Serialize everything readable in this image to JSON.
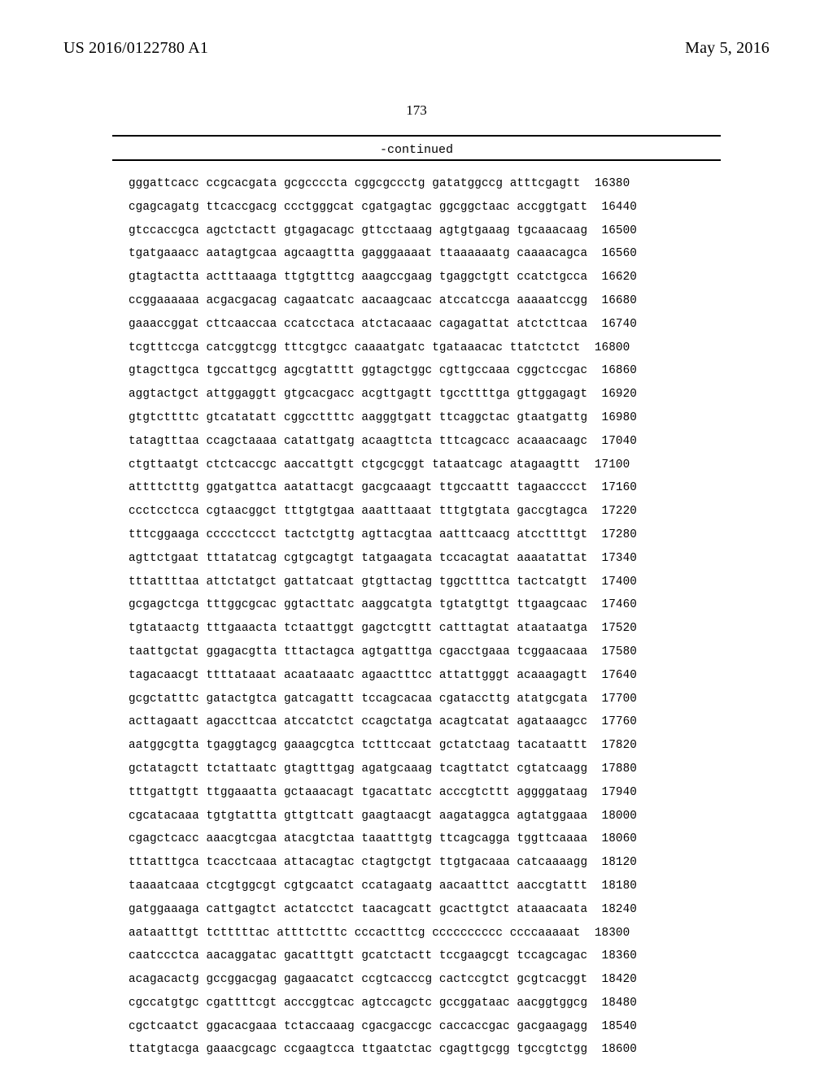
{
  "header": {
    "left": "US 2016/0122780 A1",
    "right": "May 5, 2016"
  },
  "page_number": "173",
  "continued_label": "-continued",
  "sequence_lines": [
    "gggattcacc ccgcacgata gcgccccta cggcgccctg gatatggccg atttcgagtt  16380",
    "cgagcagatg ttcaccgacg ccctgggcat cgatgagtac ggcggctaac accggtgatt  16440",
    "gtccaccgca agctctactt gtgagacagc gttcctaaag agtgtgaaag tgcaaacaag  16500",
    "tgatgaaacc aatagtgcaa agcaagttta gagggaaaat ttaaaaaatg caaaacagca  16560",
    "gtagtactta actttaaaga ttgtgtttcg aaagccgaag tgaggctgtt ccatctgcca  16620",
    "ccggaaaaaa acgacgacag cagaatcatc aacaagcaac atccatccga aaaaatccgg  16680",
    "gaaaccggat cttcaaccaa ccatcctaca atctacaaac cagagattat atctcttcaa  16740",
    "tcgtttccga catcggtcgg tttcgtgcc caaaatgatc tgataaacac ttatctctct  16800",
    "gtagcttgca tgccattgcg agcgtatttt ggtagctggc cgttgccaaa cggctccgac  16860",
    "aggtactgct attggaggtt gtgcacgacc acgttgagtt tgccttttga gttggagagt  16920",
    "gtgtcttttc gtcatatatt cggccttttc aagggtgatt ttcaggctac gtaatgattg  16980",
    "tatagtttaa ccagctaaaa catattgatg acaagttcta tttcagcacc acaaacaagc  17040",
    "ctgttaatgt ctctcaccgc aaccattgtt ctgcgcggt tataatcagc atagaagttt  17100",
    "attttctttg ggatgattca aatattacgt gacgcaaagt ttgccaattt tagaacccct  17160",
    "ccctcctcca cgtaacggct tttgtgtgaa aaatttaaat tttgtgtata gaccgtagca  17220",
    "tttcggaaga ccccctccct tactctgttg agttacgtaa aatttcaacg atccttttgt  17280",
    "agttctgaat tttatatcag cgtgcagtgt tatgaagata tccacagtat aaaatattat  17340",
    "tttattttaa attctatgct gattatcaat gtgttactag tggcttttca tactcatgtt  17400",
    "gcgagctcga tttggcgcac ggtacttatc aaggcatgta tgtatgttgt ttgaagcaac  17460",
    "tgtataactg tttgaaacta tctaattggt gagctcgttt catttagtat ataataatga  17520",
    "taattgctat ggagacgtta tttactagca agtgatttga cgacctgaaa tcggaacaaa  17580",
    "tagacaacgt ttttataaat acaataaatc agaactttcc attattgggt acaaagagtt  17640",
    "gcgctatttc gatactgtca gatcagattt tccagcacaa cgataccttg atatgcgata  17700",
    "acttagaatt agaccttcaa atccatctct ccagctatga acagtcatat agataaagcc  17760",
    "aatggcgtta tgaggtagcg gaaagcgtca tctttccaat gctatctaag tacataattt  17820",
    "gctatagctt tctattaatc gtagtttgag agatgcaaag tcagttatct cgtatcaagg  17880",
    "tttgattgtt ttggaaatta gctaaacagt tgacattatc acccgtcttt aggggataag  17940",
    "cgcatacaaa tgtgtattta gttgttcatt gaagtaacgt aagataggca agtatggaaa  18000",
    "cgagctcacc aaacgtcgaa atacgtctaa taaatttgtg ttcagcagga tggttcaaaa  18060",
    "tttatttgca tcacctcaaa attacagtac ctagtgctgt ttgtgacaaa catcaaaagg  18120",
    "taaaatcaaa ctcgtggcgt cgtgcaatct ccatagaatg aacaatttct aaccgtattt  18180",
    "gatggaaaga cattgagtct actatcctct taacagcatt gcacttgtct ataaacaata  18240",
    "aataatttgt tctttttac attttctttc cccactttcg cccccccccc ccccaaaaat  18300",
    "caatccctca aacaggatac gacatttgtt gcatctactt tccgaagcgt tccagcagac  18360",
    "acagacactg gccggacgag gagaacatct ccgtcacccg cactccgtct gcgtcacggt  18420",
    "cgccatgtgc cgattttcgt acccggtcac agtccagctc gccggataac aacggtggcg  18480",
    "cgctcaatct ggacacgaaa tctaccaaag cgacgaccgc caccaccgac gacgaagagg  18540",
    "ttatgtacga gaaacgcagc ccgaagtcca ttgaatctac cgagttgcgg tgccgtctgg  18600"
  ]
}
